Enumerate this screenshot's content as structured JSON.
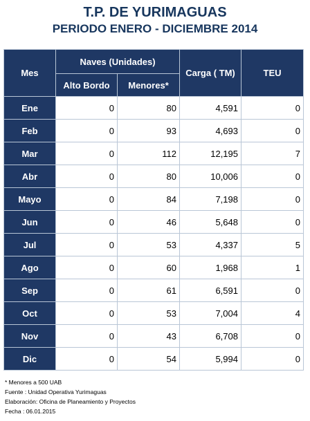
{
  "header": {
    "title": "T.P. DE YURIMAGUAS",
    "subtitle": "PERIODO ENERO - DICIEMBRE 2014"
  },
  "table": {
    "columns": {
      "mes": "Mes",
      "naves_group": "Naves (Unidades)",
      "alto_bordo": "Alto Bordo",
      "menores": "Menores*",
      "carga": "Carga ( TM)",
      "teu": "TEU"
    },
    "rows": [
      {
        "mes": "Ene",
        "alto_bordo": "0",
        "menores": "80",
        "carga": "4,591",
        "teu": "0"
      },
      {
        "mes": "Feb",
        "alto_bordo": "0",
        "menores": "93",
        "carga": "4,693",
        "teu": "0"
      },
      {
        "mes": "Mar",
        "alto_bordo": "0",
        "menores": "112",
        "carga": "12,195",
        "teu": "7"
      },
      {
        "mes": "Abr",
        "alto_bordo": "0",
        "menores": "80",
        "carga": "10,006",
        "teu": "0"
      },
      {
        "mes": "Mayo",
        "alto_bordo": "0",
        "menores": "84",
        "carga": "7,198",
        "teu": "0"
      },
      {
        "mes": "Jun",
        "alto_bordo": "0",
        "menores": "46",
        "carga": "5,648",
        "teu": "0"
      },
      {
        "mes": "Jul",
        "alto_bordo": "0",
        "menores": "53",
        "carga": "4,337",
        "teu": "5"
      },
      {
        "mes": "Ago",
        "alto_bordo": "0",
        "menores": "60",
        "carga": "1,968",
        "teu": "1"
      },
      {
        "mes": "Sep",
        "alto_bordo": "0",
        "menores": "61",
        "carga": "6,591",
        "teu": "0"
      },
      {
        "mes": "Oct",
        "alto_bordo": "0",
        "menores": "53",
        "carga": "7,004",
        "teu": "4"
      },
      {
        "mes": "Nov",
        "alto_bordo": "0",
        "menores": "43",
        "carga": "6,708",
        "teu": "0"
      },
      {
        "mes": "Dic",
        "alto_bordo": "0",
        "menores": "54",
        "carga": "5,994",
        "teu": "0"
      }
    ]
  },
  "notes": {
    "footnote": "* Menores a 500 UAB",
    "fuente": "Fuente : Unidad Operativa Yurimaguas",
    "elaboracion": "Elaboración: Oficina de Planeamiento y Proyectos",
    "fecha": "Fecha : 06.01.2015"
  },
  "colors": {
    "header_fill": "#1f3864",
    "title_text": "#17365d",
    "grid_line": "#b9c6d6"
  }
}
